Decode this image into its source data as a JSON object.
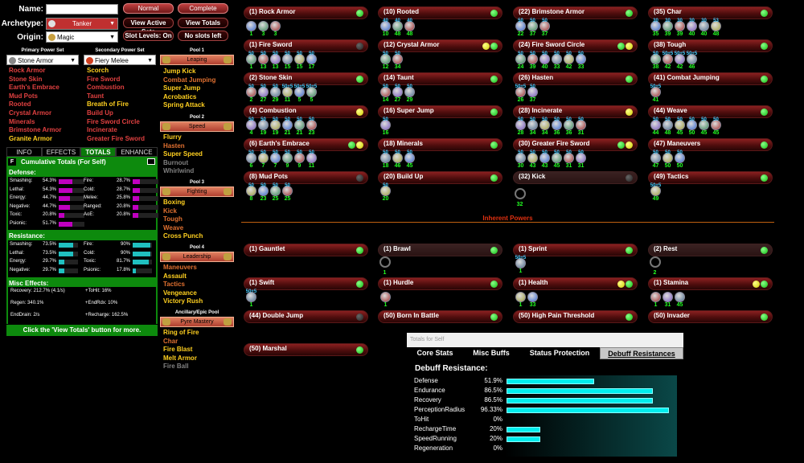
{
  "header": {
    "name_label": "Name:",
    "archetype_label": "Archetype:",
    "origin_label": "Origin:",
    "archetype": "Tanker",
    "origin": "Magic",
    "btn_normal": "Normal",
    "btn_complete": "Complete",
    "btn_active_sets": "View Active Sets",
    "btn_view_totals": "View Totals",
    "btn_slot_levels": "Slot Levels: On",
    "btn_no_slots": "No slots left"
  },
  "primary": {
    "header": "Primary Power Set",
    "set": "Stone Armor",
    "powers": [
      "Rock Armor",
      "Stone Skin",
      "Earth's Embrace",
      "Mud Pots",
      "Rooted",
      "Crystal Armor",
      "Minerals",
      "Brimstone Armor",
      "Granite Armor"
    ]
  },
  "secondary": {
    "header": "Secondary Power Set",
    "set": "Fiery Melee",
    "powers": [
      "Scorch",
      "Fire Sword",
      "Combustion",
      "Taunt",
      "Breath of Fire",
      "Build Up",
      "Fire Sword Circle",
      "Incinerate",
      "Greater Fire Sword"
    ]
  },
  "pools": [
    {
      "header": "Pool 1",
      "name": "Leaping",
      "powers": [
        "Jump Kick",
        "Combat Jumping",
        "Super Jump",
        "Acrobatics",
        "Spring Attack"
      ]
    },
    {
      "header": "Pool 2",
      "name": "Speed",
      "powers": [
        "Flurry",
        "Hasten",
        "Super Speed",
        "Burnout",
        "Whirlwind"
      ]
    },
    {
      "header": "Pool 3",
      "name": "Fighting",
      "powers": [
        "Boxing",
        "Kick",
        "Tough",
        "Weave",
        "Cross Punch"
      ]
    },
    {
      "header": "Pool 4",
      "name": "Leadership",
      "powers": [
        "Maneuvers",
        "Assault",
        "Tactics",
        "Vengeance",
        "Victory Rush"
      ]
    },
    {
      "header": "Ancillary/Epic Pool",
      "name": "Pyre Mastery",
      "powers": [
        "Ring of Fire",
        "Char",
        "Fire Blast",
        "Melt Armor",
        "Fire Ball"
      ]
    }
  ],
  "info_tabs": [
    "INFO",
    "EFFECTS",
    "TOTALS",
    "ENHANCE"
  ],
  "totals": {
    "title": "Cumulative Totals (For Self)",
    "toggle": "F",
    "defense_label": "Defense:",
    "defense_left": [
      [
        "Smashing:",
        "54.3%"
      ],
      [
        "Lethal:",
        "54.3%"
      ],
      [
        "Energy:",
        "44.7%"
      ],
      [
        "Negative:",
        "44.7%"
      ],
      [
        "Toxic:",
        "20.8%"
      ],
      [
        "Psionic:",
        "51.7%"
      ]
    ],
    "defense_left_pct": [
      54.3,
      54.3,
      44.7,
      44.7,
      20.8,
      51.7
    ],
    "defense_right": [
      [
        "Fire:",
        "28.7%"
      ],
      [
        "Cold:",
        "28.7%"
      ],
      [
        "Melee:",
        "25.8%"
      ],
      [
        "Ranged:",
        "20.8%"
      ],
      [
        "AoE:",
        "20.8%"
      ]
    ],
    "defense_right_pct": [
      28.7,
      28.7,
      25.8,
      20.8,
      20.8
    ],
    "resistance_label": "Resistance:",
    "res_left": [
      [
        "Smashing:",
        "73.5%"
      ],
      [
        "Lethal:",
        "73.5%"
      ],
      [
        "Energy:",
        "29.7%"
      ],
      [
        "Negative:",
        "29.7%"
      ]
    ],
    "res_left_pct": [
      73.5,
      73.5,
      29.7,
      29.7
    ],
    "res_right": [
      [
        "Fire:",
        "90%"
      ],
      [
        "Cold:",
        "90%"
      ],
      [
        "Toxic:",
        "81.7%"
      ],
      [
        "Psionic:",
        "17.8%"
      ]
    ],
    "res_right_pct": [
      90,
      90,
      81.7,
      17.8
    ],
    "misc_label": "Misc Effects:",
    "recovery": "Recovery: 212.7% (4.1/s)",
    "tohit": "+ToHit: 16%",
    "regen": "Regen: 340.1%",
    "endrdx": "+EndRdx: 10%",
    "enddrain": "EndDrain: 2/s",
    "recharge": "+Recharge: 162.5%",
    "footer": "Click the 'View Totals' button for more."
  },
  "powers_grid": [
    {
      "label": "(1) Rock Armor",
      "light": "g",
      "slots": [
        [
          "1",
          ""
        ],
        [
          "3",
          ""
        ],
        [
          "3",
          ""
        ]
      ]
    },
    {
      "label": "(1) Fire Sword",
      "light": "k",
      "slots": [
        [
          "1",
          "50"
        ],
        [
          "13",
          "50"
        ],
        [
          "13",
          "50"
        ],
        [
          "15",
          "50"
        ],
        [
          "15",
          "50"
        ],
        [
          "17",
          "50"
        ]
      ]
    },
    {
      "label": "(2) Stone Skin",
      "light": "g",
      "slots": [
        [
          "2",
          "50"
        ],
        [
          "27",
          "50"
        ],
        [
          "29",
          "50"
        ],
        [
          "11",
          "50+5"
        ],
        [
          "5",
          "50+5"
        ],
        [
          "5",
          "50+5"
        ]
      ]
    },
    {
      "label": "(4) Combustion",
      "light": "y",
      "slots": [
        [
          "4",
          "50"
        ],
        [
          "19",
          "50"
        ],
        [
          "19",
          "50"
        ],
        [
          "21",
          "50"
        ],
        [
          "21",
          "50"
        ],
        [
          "23",
          "50"
        ]
      ]
    },
    {
      "label": "(6) Earth's Embrace",
      "light": "gy",
      "slots": [
        [
          "6",
          "50"
        ],
        [
          "7",
          "50"
        ],
        [
          "7",
          "50"
        ],
        [
          "9",
          "50"
        ],
        [
          "9",
          "50"
        ],
        [
          "11",
          "50"
        ]
      ]
    },
    {
      "label": "(8) Mud Pots",
      "light": "k",
      "slots": [
        [
          "8",
          "50"
        ],
        [
          "23",
          "50"
        ],
        [
          "25",
          "50"
        ],
        [
          "25",
          "50"
        ]
      ]
    },
    {
      "label": "(10) Rooted",
      "light": "g",
      "slots": [
        [
          "10",
          "40"
        ],
        [
          "48",
          "40"
        ],
        [
          "48",
          "40"
        ]
      ]
    },
    {
      "label": "(12) Crystal Armor",
      "light": "yg",
      "slots": [
        [
          "12",
          "50"
        ],
        [
          "34",
          "50"
        ]
      ]
    },
    {
      "label": "(14) Taunt",
      "light": "g",
      "slots": [
        [
          "14",
          "50"
        ],
        [
          "27",
          "50"
        ],
        [
          "29",
          "50"
        ]
      ]
    },
    {
      "label": "(16) Super Jump",
      "light": "g",
      "slots": [
        [
          "16",
          "50"
        ]
      ]
    },
    {
      "label": "(18) Minerals",
      "light": "g",
      "slots": [
        [
          "18",
          "50"
        ],
        [
          "46",
          "50"
        ],
        [
          "45",
          "50"
        ]
      ]
    },
    {
      "label": "(20) Build Up",
      "light": "g",
      "slots": [
        [
          "20",
          "50"
        ]
      ]
    },
    {
      "label": "(22) Brimstone Armor",
      "light": "g",
      "slots": [
        [
          "22",
          "50"
        ],
        [
          "37",
          "50"
        ],
        [
          "37",
          "50"
        ]
      ]
    },
    {
      "label": "(24) Fire Sword Circle",
      "light": "gy",
      "slots": [
        [
          "24",
          "50"
        ],
        [
          "39",
          "50"
        ],
        [
          "40",
          "50"
        ],
        [
          "33",
          "50"
        ],
        [
          "42",
          "50"
        ],
        [
          "33",
          "50"
        ]
      ]
    },
    {
      "label": "(26) Hasten",
      "light": "g",
      "slots": [
        [
          "26",
          "50+5"
        ],
        [
          "37",
          "50"
        ]
      ]
    },
    {
      "label": "(28) Incinerate",
      "light": "y",
      "slots": [
        [
          "28",
          "50"
        ],
        [
          "34",
          "50"
        ],
        [
          "34",
          "50"
        ],
        [
          "36",
          "50"
        ],
        [
          "36",
          "50"
        ],
        [
          "31",
          "50"
        ]
      ]
    },
    {
      "label": "(30) Greater Fire Sword",
      "light": "gy",
      "slots": [
        [
          "30",
          "50"
        ],
        [
          "43",
          "50"
        ],
        [
          "43",
          "50"
        ],
        [
          "45",
          "50"
        ],
        [
          "31",
          "50"
        ],
        [
          "31",
          "50"
        ]
      ]
    },
    {
      "label": "(32) Kick",
      "light": "k",
      "slots": [
        [
          "32",
          ""
        ]
      ]
    },
    {
      "label": "(35) Char",
      "light": "g",
      "slots": [
        [
          "35",
          "30"
        ],
        [
          "39",
          "30"
        ],
        [
          "39",
          "30"
        ],
        [
          "40",
          "30"
        ],
        [
          "40",
          "30"
        ],
        [
          "48",
          "53"
        ]
      ]
    },
    {
      "label": "(38) Tough",
      "light": "g",
      "slots": [
        [
          "38",
          "50"
        ],
        [
          "42",
          "50+5"
        ],
        [
          "42",
          "50+5"
        ],
        [
          "46",
          "50+5"
        ]
      ]
    },
    {
      "label": "(41) Combat Jumping",
      "light": "g",
      "slots": [
        [
          "41",
          "50+5"
        ]
      ]
    },
    {
      "label": "(44) Weave",
      "light": "g",
      "slots": [
        [
          "44",
          "50"
        ],
        [
          "48",
          "50"
        ],
        [
          "45",
          "50"
        ],
        [
          "50",
          "50"
        ],
        [
          "45",
          "50"
        ],
        [
          "45",
          "50"
        ]
      ]
    },
    {
      "label": "(47) Maneuvers",
      "light": "g",
      "slots": [
        [
          "47",
          "50"
        ],
        [
          "50",
          "50"
        ],
        [
          "50",
          "50"
        ]
      ]
    },
    {
      "label": "(49) Tactics",
      "light": "g",
      "slots": [
        [
          "49",
          "50+5"
        ]
      ]
    }
  ],
  "inherent_label": "Inherent Powers",
  "inherent": [
    {
      "label": "(1) Gauntlet",
      "light": "g",
      "slots": []
    },
    {
      "label": "(1) Swift",
      "light": "g",
      "slots": [
        [
          "1",
          "50+5"
        ]
      ]
    },
    {
      "label": "(44) Double Jump",
      "light": "k",
      "slots": []
    },
    {
      "label": "(50) Marshal",
      "light": "g",
      "slots": []
    },
    {
      "label": "(1) Brawl",
      "light": "g",
      "slots": [
        [
          "1",
          ""
        ]
      ],
      "empty": true
    },
    {
      "label": "(1) Hurdle",
      "light": "g",
      "slots": [
        [
          "1",
          ""
        ]
      ]
    },
    {
      "label": "(50) Born In Battle",
      "light": "g",
      "slots": []
    },
    {
      "label": "(1) Sprint",
      "light": "g",
      "slots": [
        [
          "1",
          "50+5"
        ]
      ]
    },
    {
      "label": "(1) Health",
      "light": "yg",
      "slots": [
        [
          "1",
          ""
        ],
        [
          "33",
          ""
        ]
      ]
    },
    {
      "label": "(50) High Pain Threshold",
      "light": "g",
      "slots": []
    },
    {
      "label": "(2) Rest",
      "light": "g",
      "slots": [
        [
          "2",
          ""
        ]
      ],
      "empty": true
    },
    {
      "label": "(1) Stamina",
      "light": "yg",
      "slots": [
        [
          "1",
          ""
        ],
        [
          "31",
          ""
        ],
        [
          "45",
          ""
        ]
      ]
    },
    {
      "label": "(50) Invader",
      "light": "g",
      "slots": []
    }
  ],
  "popup": {
    "title": "Totals for Self",
    "tabs": [
      "Core Stats",
      "Misc Buffs",
      "Status Protection",
      "Debuff Resistances"
    ],
    "heading": "Debuff Resistance:",
    "rows": [
      [
        "Defense",
        "51.9%"
      ],
      [
        "Endurance",
        "86.5%"
      ],
      [
        "Recovery",
        "86.5%"
      ],
      [
        "PerceptionRadius",
        "96.33%"
      ],
      [
        "ToHit",
        "0%"
      ],
      [
        "RechargeTime",
        "20%"
      ],
      [
        "SpeedRunning",
        "20%"
      ],
      [
        "Regeneration",
        "0%"
      ]
    ],
    "pct": [
      51.9,
      86.5,
      86.5,
      96.33,
      0,
      20,
      20,
      0
    ]
  },
  "colors": {
    "accent_green": "#0d8a0d",
    "bar_magenta": "#c000c0",
    "bar_cyan": "#20c0c0",
    "slot_level": "#22ff22"
  }
}
